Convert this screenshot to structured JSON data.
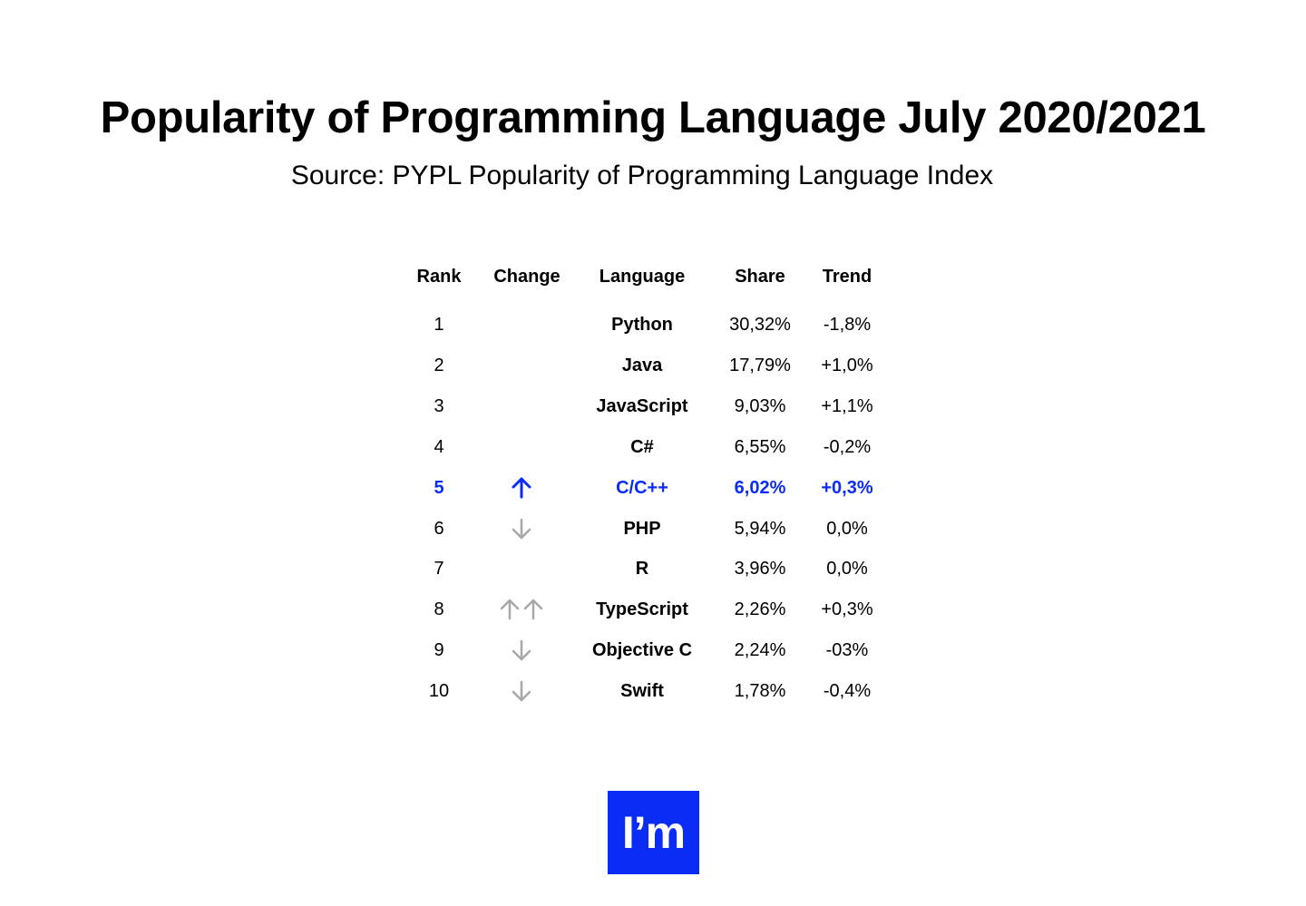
{
  "colors": {
    "text": "#000000",
    "highlight": "#0a2cf5",
    "arrow_muted": "#a8a8a8",
    "logo_bg": "#0a2cf5",
    "logo_text": "#ffffff"
  },
  "header": {
    "title": "Popularity of Programming Language July 2020/2021",
    "subtitle": "Source: PYPL Popularity of Programming Language Index"
  },
  "chart_data": {
    "type": "table",
    "columns": [
      "Rank",
      "Change",
      "Language",
      "Share",
      "Trend"
    ],
    "rows": [
      {
        "rank": "1",
        "change": "",
        "language": "Python",
        "share": "30,32%",
        "trend": "-1,8%",
        "highlight": false
      },
      {
        "rank": "2",
        "change": "",
        "language": "Java",
        "share": "17,79%",
        "trend": "+1,0%",
        "highlight": false
      },
      {
        "rank": "3",
        "change": "",
        "language": "JavaScript",
        "share": "9,03%",
        "trend": "+1,1%",
        "highlight": false
      },
      {
        "rank": "4",
        "change": "",
        "language": "C#",
        "share": "6,55%",
        "trend": "-0,2%",
        "highlight": false
      },
      {
        "rank": "5",
        "change": "up",
        "language": "C/C++",
        "share": "6,02%",
        "trend": "+0,3%",
        "highlight": true
      },
      {
        "rank": "6",
        "change": "down",
        "language": "PHP",
        "share": "5,94%",
        "trend": "0,0%",
        "highlight": false
      },
      {
        "rank": "7",
        "change": "",
        "language": "R",
        "share": "3,96%",
        "trend": "0,0%",
        "highlight": false
      },
      {
        "rank": "8",
        "change": "up-up",
        "language": "TypeScript",
        "share": "2,26%",
        "trend": "+0,3%",
        "highlight": false
      },
      {
        "rank": "9",
        "change": "down",
        "language": "Objective C",
        "share": "2,24%",
        "trend": "-03%",
        "highlight": false
      },
      {
        "rank": "10",
        "change": "down",
        "language": "Swift",
        "share": "1,78%",
        "trend": "-0,4%",
        "highlight": false
      }
    ]
  },
  "logo": {
    "text": "I’m"
  }
}
